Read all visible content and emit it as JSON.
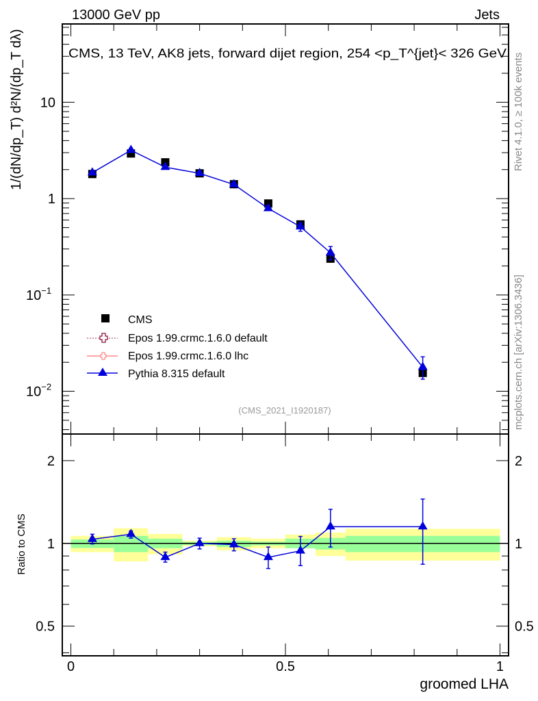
{
  "header": {
    "left": "13000 GeV pp",
    "right": "Jets"
  },
  "side_text": {
    "rivet": "Rivet 4.1.0, ≥ 100k events",
    "mcplots": "mcplots.cern.ch [arXiv:1306.3436]"
  },
  "chart_data": [
    {
      "type": "scatter",
      "panel": "main",
      "title": "CMS, 13 TeV, AK8 jets, forward dijet region, 254 <p_T^{jet}< 326 GeV",
      "title_main": "CMS, 13 TeV, AK8 jets, forward dijet region, 254 <p",
      "title_sub": "T",
      "title_sup": "{jet}",
      "title_end": "}< 326 GeV",
      "ylabel": "1/(dN/dp_T) d²N/(dp_T dλ)",
      "xlim": [
        -0.02,
        1.02
      ],
      "ylim": [
        0.0036,
        65
      ],
      "yscale": "log",
      "ytick_labels": [
        {
          "v": 10,
          "t": "10"
        },
        {
          "v": 1,
          "t": "1"
        },
        {
          "v": 0.1,
          "t": "10",
          "e": "−1"
        },
        {
          "v": 0.01,
          "t": "10",
          "e": "−2"
        }
      ],
      "analysis_tag": "(CMS_2021_I1920187)",
      "bin_edges": [
        0,
        0.1,
        0.18,
        0.26,
        0.34,
        0.42,
        0.5,
        0.57,
        0.64,
        1.0
      ],
      "x": [
        0.05,
        0.14,
        0.22,
        0.3,
        0.38,
        0.46,
        0.535,
        0.605,
        0.82
      ],
      "series": [
        {
          "name": "CMS",
          "marker": "square",
          "color": "#000000",
          "values": [
            1.8,
            2.94,
            2.38,
            1.83,
            1.41,
            0.89,
            0.54,
            0.238,
            0.0155
          ]
        },
        {
          "name": "Epos 1.99.crmc.1.6.0 default",
          "marker": "open-cross",
          "color": "#993355",
          "line": "dotted",
          "values": []
        },
        {
          "name": "Epos 1.99.crmc.1.6.0 lhc",
          "marker": "open-cross",
          "color": "#ff8888",
          "line": "solid",
          "values": []
        },
        {
          "name": "Pythia 8.315 default",
          "marker": "triangle",
          "color": "#0000dd",
          "values": [
            1.86,
            3.18,
            2.12,
            1.83,
            1.4,
            0.79,
            0.51,
            0.274,
            0.0178
          ],
          "err_rel_up": [
            0.02,
            0.02,
            0.03,
            0.03,
            0.04,
            0.05,
            0.1,
            0.16,
            0.28
          ],
          "err_rel_down": [
            0.02,
            0.02,
            0.03,
            0.03,
            0.04,
            0.05,
            0.1,
            0.16,
            0.25
          ]
        }
      ],
      "legend_position": "lower-left"
    },
    {
      "type": "scatter",
      "panel": "ratio",
      "ylabel": "Ratio to CMS",
      "xlabel": "groomed LHA",
      "xlim": [
        -0.02,
        1.02
      ],
      "ylim": [
        0.39,
        2.5
      ],
      "yscale": "log",
      "ytick_labels": [
        {
          "v": 2,
          "t": "2"
        },
        {
          "v": 1,
          "t": "1"
        },
        {
          "v": 0.5,
          "t": "0.5"
        }
      ],
      "xtick_labels": [
        {
          "v": 0,
          "t": "0"
        },
        {
          "v": 0.5,
          "t": "0.5"
        },
        {
          "v": 1,
          "t": "1"
        }
      ],
      "band_total": {
        "color": "#ffff99",
        "up": [
          1.065,
          1.136,
          1.083,
          1.023,
          1.053,
          1.04,
          1.077,
          1.095,
          1.13
        ],
        "down": [
          0.93,
          0.86,
          0.913,
          0.977,
          0.943,
          0.96,
          0.96,
          0.9,
          0.866
        ]
      },
      "band_stat": {
        "color": "#99ff99",
        "up": [
          1.033,
          1.065,
          1.04,
          1.013,
          1.023,
          1.015,
          1.04,
          1.047,
          1.065
        ],
        "down": [
          0.962,
          0.93,
          0.96,
          0.987,
          0.97,
          0.984,
          0.96,
          0.95,
          0.93
        ]
      },
      "pythia_ratio": [
        1.035,
        1.08,
        0.89,
        1.0,
        0.99,
        0.89,
        0.94,
        1.15,
        1.15
      ],
      "pythia_ratio_up": [
        1.08,
        1.11,
        0.93,
        1.045,
        1.04,
        0.97,
        1.06,
        1.33,
        1.45
      ],
      "pythia_ratio_down": [
        0.995,
        1.045,
        0.855,
        0.955,
        0.94,
        0.81,
        0.83,
        0.97,
        0.84
      ]
    }
  ]
}
